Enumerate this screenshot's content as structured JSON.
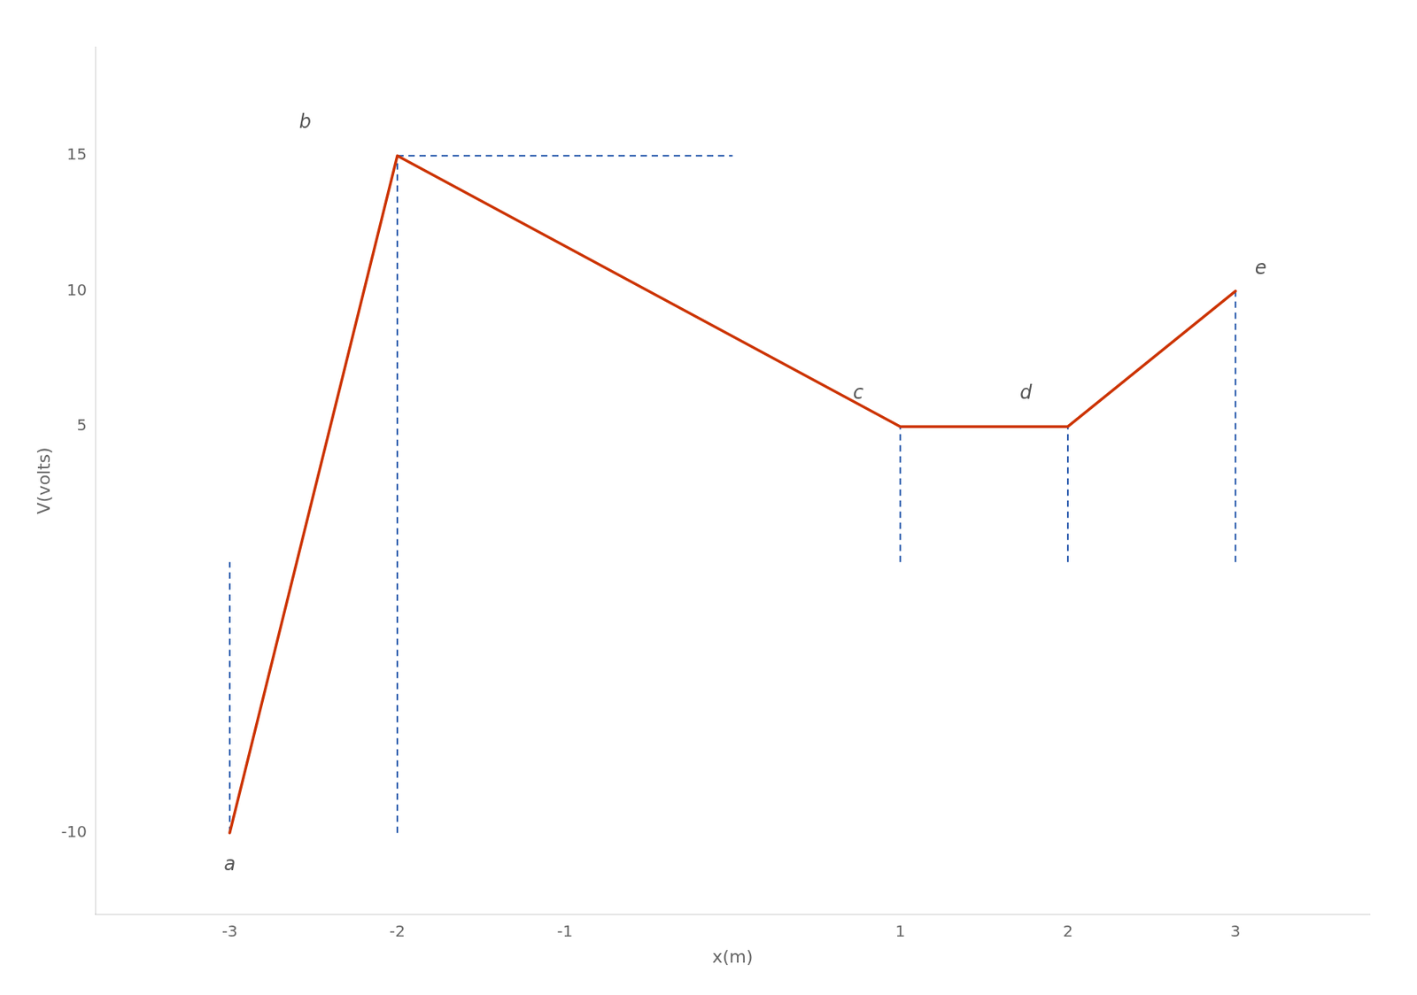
{
  "chart_data": {
    "type": "line",
    "xlabel": "x(m)",
    "ylabel": "V(volts)",
    "series": [
      {
        "x": [
          -3,
          -2,
          1,
          2,
          3
        ],
        "values": [
          -10,
          15,
          5,
          5,
          10
        ],
        "color": "#cc3300",
        "line_style": "solid"
      },
      {
        "x": [
          -3,
          -3
        ],
        "values": [
          -10,
          0
        ],
        "color": "#2255aa",
        "line_style": "dashed"
      },
      {
        "x": [
          -2,
          -2
        ],
        "values": [
          -10,
          15
        ],
        "color": "#2255aa",
        "line_style": "dashed"
      },
      {
        "x": [
          1,
          1
        ],
        "values": [
          0,
          5
        ],
        "color": "#2255aa",
        "line_style": "dashed"
      },
      {
        "x": [
          2,
          2
        ],
        "values": [
          0,
          5
        ],
        "color": "#2255aa",
        "line_style": "dashed"
      },
      {
        "x": [
          3,
          3
        ],
        "values": [
          0,
          10
        ],
        "color": "#2255aa",
        "line_style": "dashed"
      },
      {
        "x": [
          -2,
          0
        ],
        "values": [
          15,
          15
        ],
        "color": "#2255aa",
        "line_style": "dashed"
      }
    ],
    "annotations": [
      {
        "text": "a",
        "x": -3.0,
        "y": -11.2
      },
      {
        "text": "b",
        "x": -2.55,
        "y": 16.2
      },
      {
        "text": "c",
        "x": 0.75,
        "y": 6.2
      },
      {
        "text": "d",
        "x": 1.75,
        "y": 6.2
      },
      {
        "text": "e",
        "x": 3.15,
        "y": 10.8
      }
    ],
    "xlim": [
      -3.8,
      3.8
    ],
    "ylim": [
      -13,
      19
    ],
    "xticks": [
      -3,
      -2,
      -1,
      1,
      2,
      3
    ],
    "yticks": [
      -10,
      5,
      10,
      15
    ],
    "grid": false
  }
}
